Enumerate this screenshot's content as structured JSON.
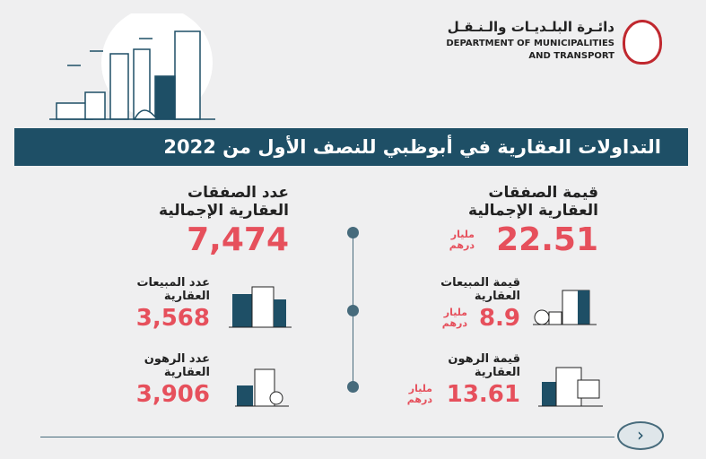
{
  "header": {
    "dept_ar": "دائـرة البلـديـات والـنـقـل",
    "dept_en_1": "DEPARTMENT OF MUNICIPALITIES",
    "dept_en_2": "AND TRANSPORT",
    "logo": "abu-dhabi-emblem"
  },
  "title": "التداولات العقارية في أبوظبي للنصف الأول من 2022",
  "colors": {
    "accent": "#e6505c",
    "banner": "#1e4f66",
    "background": "#efeff0"
  },
  "left": {
    "total": {
      "label_1": "عدد الصفقات",
      "label_2": "العقارية الإجمالية",
      "value": "7,474"
    },
    "sales": {
      "label_1": "عدد المبيعات",
      "label_2": "العقارية",
      "value": "3,568",
      "icon": "building-icon"
    },
    "mortgages": {
      "label_1": "عدد الرهون",
      "label_2": "العقارية",
      "value": "3,906",
      "icon": "building-percent-icon"
    }
  },
  "right": {
    "total": {
      "label_1": "قيمة الصفقات",
      "label_2": "العقارية الإجمالية",
      "value": "22.51",
      "unit_1": "مليار",
      "unit_2": "درهم"
    },
    "sales": {
      "label_1": "قيمة المبيعات",
      "label_2": "العقارية",
      "value": "8.9",
      "unit_1": "مليار",
      "unit_2": "درهم",
      "icon": "building-coins-icon"
    },
    "mortgages": {
      "label_1": "قيمة الرهون",
      "label_2": "العقارية",
      "value": "13.61",
      "unit_1": "مليار",
      "unit_2": "درهم",
      "icon": "building-calculator-icon"
    }
  },
  "next_icon": "chevron-right-icon"
}
